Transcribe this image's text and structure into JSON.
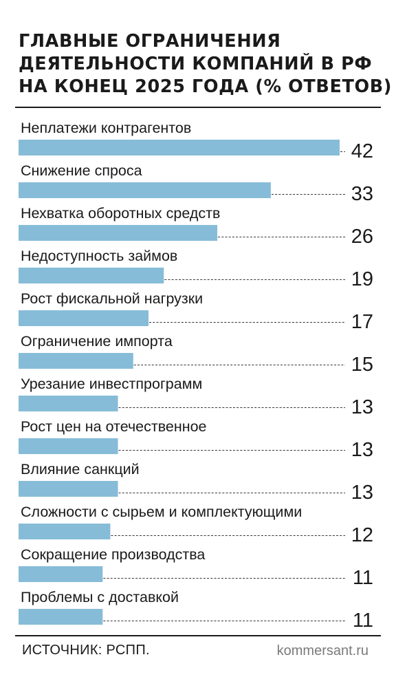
{
  "title_lines": [
    "ГЛАВНЫЕ ОГРАНИЧЕНИЯ",
    "ДЕЯТЕЛЬНОСТИ КОМПАНИЙ В РФ",
    "НА КОНЕЦ 2025 ГОДА (% ОТВЕТОВ)"
  ],
  "chart_data": {
    "type": "bar",
    "orientation": "horizontal",
    "categories": [
      "Неплатежи контрагентов",
      "Снижение спроса",
      "Нехватка оборотных средств",
      "Недоступность займов",
      "Рост фискальной нагрузки",
      "Ограничение импорта",
      "Урезание инвестпрограмм",
      "Рост цен на отечественное",
      "Влияние санкций",
      "Сложности с сырьем и комплектующими",
      "Сокращение производства",
      "Проблемы с доставкой"
    ],
    "values": [
      42,
      33,
      26,
      19,
      17,
      15,
      13,
      13,
      13,
      12,
      11,
      11
    ],
    "xlim": [
      0,
      42
    ],
    "grid": false,
    "legend": "none",
    "bar_color": "#86bcd8"
  },
  "footer": {
    "source": "ИСТОЧНИК: РСПП.",
    "site": "kommersant.ru"
  }
}
